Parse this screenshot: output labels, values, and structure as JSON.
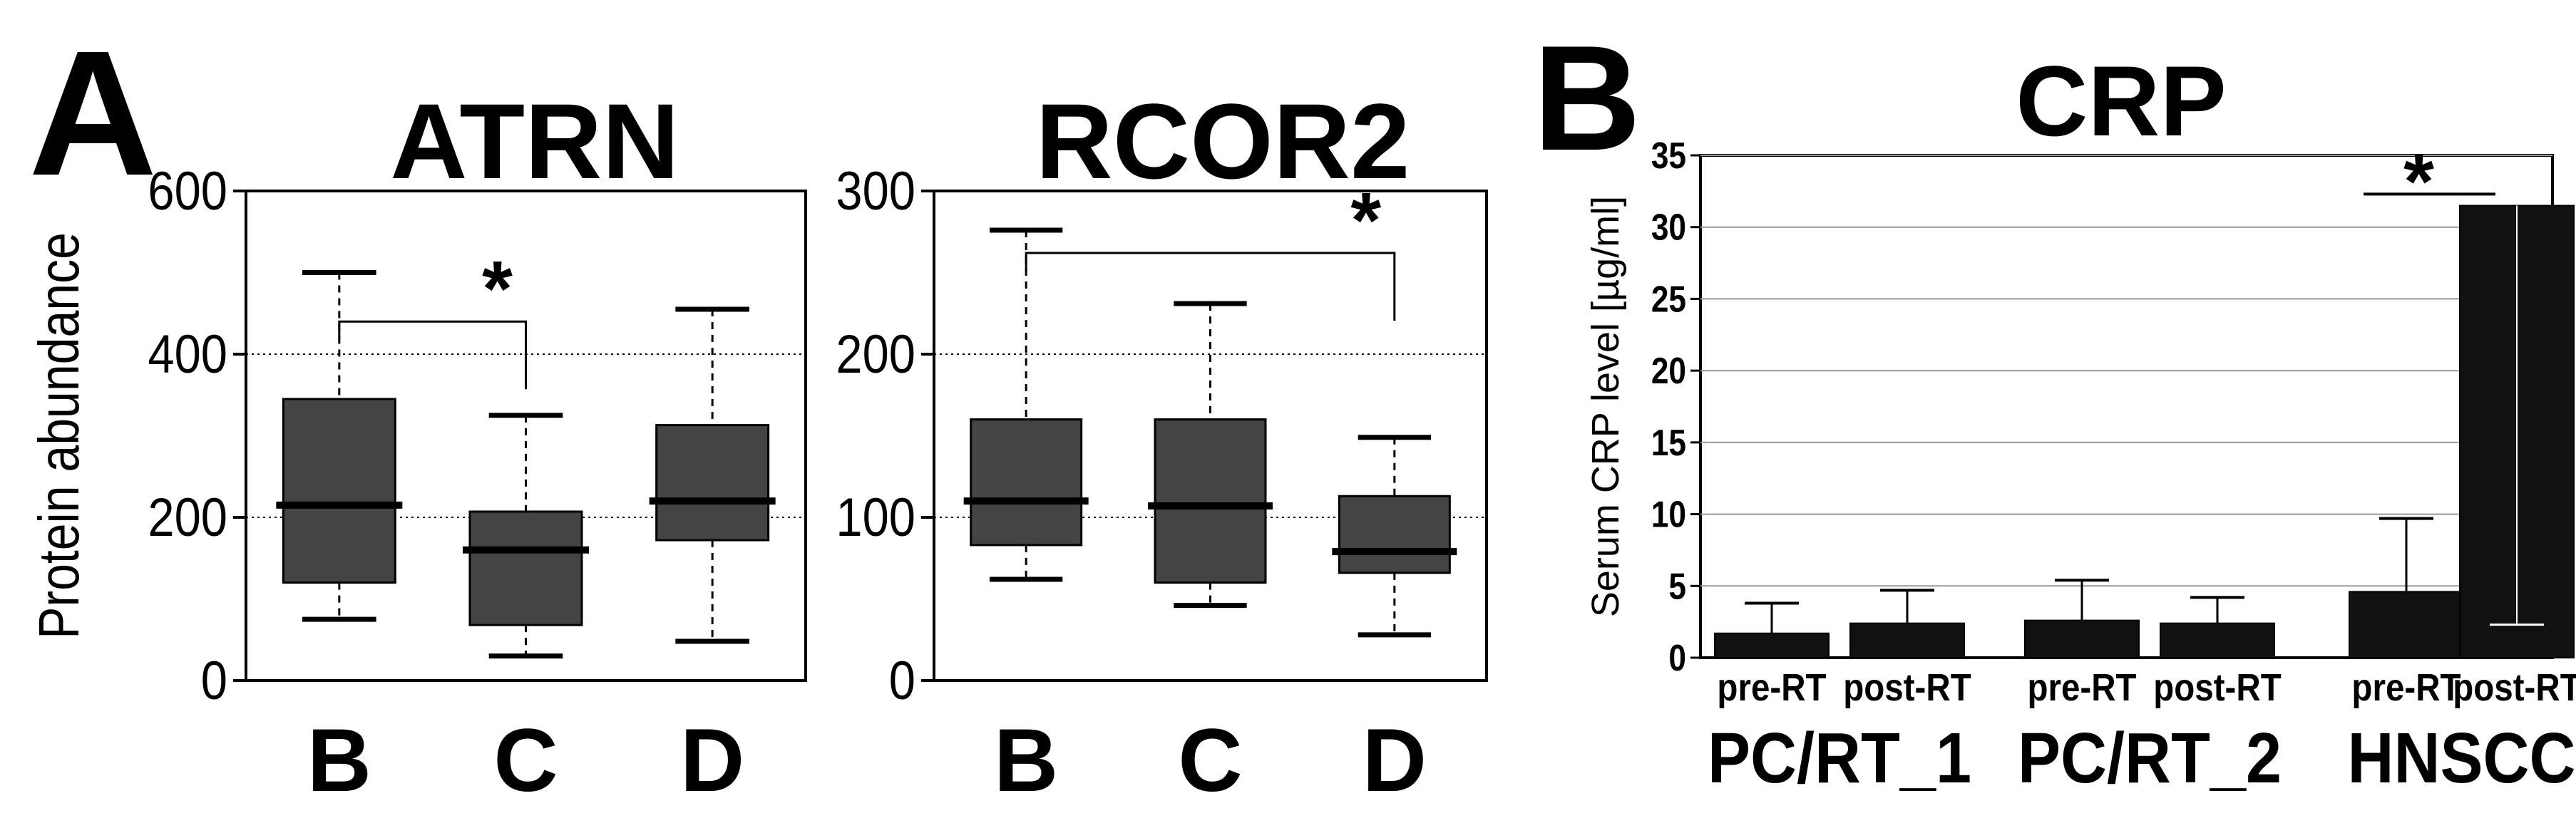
{
  "panels": {
    "a_letter": "A",
    "b_letter": "B"
  },
  "chart_data": [
    {
      "type": "box",
      "title": "ATRN",
      "ylabel": "Protein abundance",
      "xlabel": "",
      "ylim": [
        0,
        600
      ],
      "yticks": [
        0,
        200,
        400,
        600
      ],
      "ytick_labels": [
        "0",
        "200",
        "400",
        "600"
      ],
      "grid_lines": [
        200,
        400
      ],
      "categories": [
        "B",
        "C",
        "D"
      ],
      "boxes": [
        {
          "label": "B",
          "whisker_low": 75,
          "q1": 120,
          "median": 215,
          "q3": 345,
          "whisker_high": 500
        },
        {
          "label": "C",
          "whisker_low": 30,
          "q1": 68,
          "median": 160,
          "q3": 207,
          "whisker_high": 325
        },
        {
          "label": "D",
          "whisker_low": 48,
          "q1": 172,
          "median": 220,
          "q3": 313,
          "whisker_high": 455
        }
      ],
      "significance": {
        "from": "B",
        "to": "C",
        "bar_y": 440,
        "label": "*"
      },
      "box_color": "#444444"
    },
    {
      "type": "box",
      "title": "RCOR2",
      "ylabel": "",
      "xlabel": "",
      "ylim": [
        0,
        300
      ],
      "yticks": [
        0,
        100,
        200,
        300
      ],
      "ytick_labels": [
        "0",
        "100",
        "200",
        "300"
      ],
      "grid_lines": [
        100,
        200
      ],
      "categories": [
        "B",
        "C",
        "D"
      ],
      "boxes": [
        {
          "label": "B",
          "whisker_low": 62,
          "q1": 83,
          "median": 110,
          "q3": 160,
          "whisker_high": 276
        },
        {
          "label": "C",
          "whisker_low": 46,
          "q1": 60,
          "median": 107,
          "q3": 160,
          "whisker_high": 231
        },
        {
          "label": "D",
          "whisker_low": 28,
          "q1": 66,
          "median": 79,
          "q3": 113,
          "whisker_high": 149
        }
      ],
      "significance": {
        "from": "B",
        "to": "D",
        "bar_y": 262,
        "label": "*"
      },
      "box_color": "#444444"
    },
    {
      "type": "bar",
      "title": "CRP",
      "ylabel": "Serum CRP level [µg/ml]",
      "xlabel": "",
      "ylim": [
        0,
        35
      ],
      "yticks": [
        0,
        5,
        10,
        15,
        20,
        25,
        30,
        35
      ],
      "ytick_labels": [
        "0",
        "5",
        "10",
        "15",
        "20",
        "25",
        "30",
        "35"
      ],
      "grid_lines": [
        5,
        10,
        15,
        20,
        25,
        30,
        35
      ],
      "groups": [
        "PC/RT_1",
        "PC/RT_2",
        "HNSCC"
      ],
      "categories": [
        "pre-RT",
        "post-RT",
        "pre-RT",
        "post-RT",
        "pre-RT",
        "post-RT"
      ],
      "values": [
        1.7,
        2.4,
        2.6,
        2.4,
        4.6,
        31.5
      ],
      "error_upper": [
        3.8,
        4.7,
        5.4,
        4.2,
        9.7,
        2.3
      ],
      "significance": {
        "from": 4,
        "to": 5,
        "bar_y": 32.3,
        "label": "*"
      },
      "bar_color": "#111111"
    }
  ]
}
